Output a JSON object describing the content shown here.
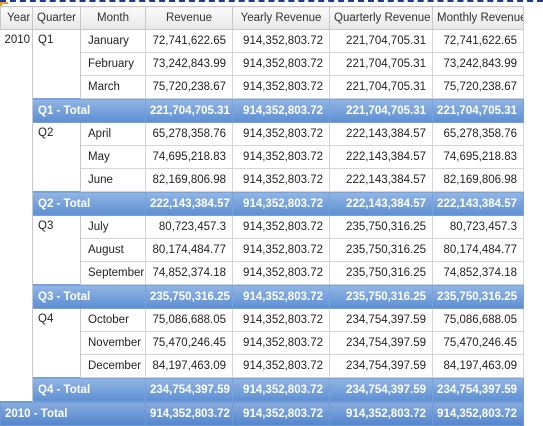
{
  "headers": {
    "year": "Year",
    "quarter": "Quarter",
    "month": "Month",
    "revenue": "Revenue",
    "yearly": "Yearly Revenue",
    "quarterly": "Quarterly Revenue",
    "monthly": "Monthly Revenue"
  },
  "year": "2010",
  "quarters": [
    {
      "name": "Q1",
      "months": [
        {
          "month": "January",
          "revenue": "72,741,622.65",
          "yearly": "914,352,803.72",
          "quarterly": "221,704,705.31",
          "monthly": "72,741,622.65"
        },
        {
          "month": "February",
          "revenue": "73,242,843.99",
          "yearly": "914,352,803.72",
          "quarterly": "221,704,705.31",
          "monthly": "73,242,843.99"
        },
        {
          "month": "March",
          "revenue": "75,720,238.67",
          "yearly": "914,352,803.72",
          "quarterly": "221,704,705.31",
          "monthly": "75,720,238.67"
        }
      ],
      "total": {
        "label": "Q1 - Total",
        "revenue": "221,704,705.31",
        "yearly": "914,352,803.72",
        "quarterly": "221,704,705.31",
        "monthly": "221,704,705.31"
      }
    },
    {
      "name": "Q2",
      "months": [
        {
          "month": "April",
          "revenue": "65,278,358.76",
          "yearly": "914,352,803.72",
          "quarterly": "222,143,384.57",
          "monthly": "65,278,358.76"
        },
        {
          "month": "May",
          "revenue": "74,695,218.83",
          "yearly": "914,352,803.72",
          "quarterly": "222,143,384.57",
          "monthly": "74,695,218.83"
        },
        {
          "month": "June",
          "revenue": "82,169,806.98",
          "yearly": "914,352,803.72",
          "quarterly": "222,143,384.57",
          "monthly": "82,169,806.98"
        }
      ],
      "total": {
        "label": "Q2 - Total",
        "revenue": "222,143,384.57",
        "yearly": "914,352,803.72",
        "quarterly": "222,143,384.57",
        "monthly": "222,143,384.57"
      }
    },
    {
      "name": "Q3",
      "months": [
        {
          "month": "July",
          "revenue": "80,723,457.3",
          "yearly": "914,352,803.72",
          "quarterly": "235,750,316.25",
          "monthly": "80,723,457.3"
        },
        {
          "month": "August",
          "revenue": "80,174,484.77",
          "yearly": "914,352,803.72",
          "quarterly": "235,750,316.25",
          "monthly": "80,174,484.77"
        },
        {
          "month": "September",
          "revenue": "74,852,374.18",
          "yearly": "914,352,803.72",
          "quarterly": "235,750,316.25",
          "monthly": "74,852,374.18"
        }
      ],
      "total": {
        "label": "Q3 - Total",
        "revenue": "235,750,316.25",
        "yearly": "914,352,803.72",
        "quarterly": "235,750,316.25",
        "monthly": "235,750,316.25"
      }
    },
    {
      "name": "Q4",
      "months": [
        {
          "month": "October",
          "revenue": "75,086,688.05",
          "yearly": "914,352,803.72",
          "quarterly": "234,754,397.59",
          "monthly": "75,086,688.05"
        },
        {
          "month": "November",
          "revenue": "75,470,246.45",
          "yearly": "914,352,803.72",
          "quarterly": "234,754,397.59",
          "monthly": "75,470,246.45"
        },
        {
          "month": "December",
          "revenue": "84,197,463.09",
          "yearly": "914,352,803.72",
          "quarterly": "234,754,397.59",
          "monthly": "84,197,463.09"
        }
      ],
      "total": {
        "label": "Q4 - Total",
        "revenue": "234,754,397.59",
        "yearly": "914,352,803.72",
        "quarterly": "234,754,397.59",
        "monthly": "234,754,397.59"
      }
    }
  ],
  "grand_total": {
    "label": "2010 - Total",
    "revenue": "914,352,803.72",
    "yearly": "914,352,803.72",
    "quarterly": "914,352,803.72",
    "monthly": "914,352,803.72"
  }
}
